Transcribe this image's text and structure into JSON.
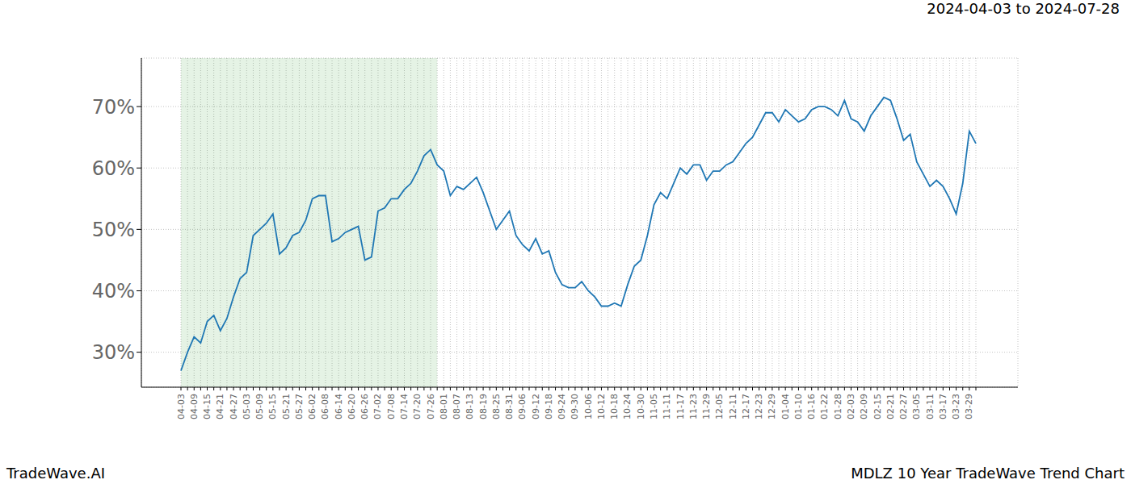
{
  "chart_data": {
    "type": "line",
    "title": "2024-04-03 to 2024-07-28",
    "footer_left": "TradeWave.AI",
    "footer_right": "MDLZ 10 Year TradeWave Trend Chart",
    "categories": [
      "04-03",
      null,
      "04-09",
      null,
      "04-15",
      null,
      "04-21",
      null,
      "04-27",
      null,
      "05-03",
      null,
      "05-09",
      null,
      "05-15",
      null,
      "05-21",
      null,
      "05-27",
      null,
      "06-02",
      null,
      "06-08",
      null,
      "06-14",
      null,
      "06-20",
      null,
      "06-26",
      null,
      "07-02",
      null,
      "07-08",
      null,
      "07-14",
      null,
      "07-20",
      null,
      "07-26",
      null,
      "08-01",
      null,
      "08-07",
      null,
      "08-13",
      null,
      "08-19",
      null,
      "08-25",
      null,
      "08-31",
      null,
      "09-06",
      null,
      "09-12",
      null,
      "09-18",
      null,
      "09-24",
      null,
      "09-30",
      null,
      "10-06",
      null,
      "10-12",
      null,
      "10-18",
      null,
      "10-24",
      null,
      "10-30",
      null,
      "11-05",
      null,
      "11-11",
      null,
      "11-17",
      null,
      "11-23",
      null,
      "11-29",
      null,
      "12-05",
      null,
      "12-11",
      null,
      "12-17",
      null,
      "12-23",
      null,
      "12-29",
      null,
      "01-04",
      null,
      "01-10",
      null,
      "01-16",
      null,
      "01-22",
      null,
      "01-28",
      null,
      "02-03",
      null,
      "02-09",
      null,
      "02-15",
      null,
      "02-21",
      null,
      "02-27",
      null,
      "03-05",
      null,
      "03-11",
      null,
      "03-17",
      null,
      "03-23",
      null,
      "03-29",
      null
    ],
    "values": [
      27,
      30,
      32.5,
      31.5,
      35,
      36,
      33.5,
      35.5,
      39,
      42,
      43,
      49,
      50,
      51,
      52.5,
      46,
      47,
      49,
      49.5,
      51.5,
      55,
      55.5,
      55.5,
      48,
      48.5,
      49.5,
      50,
      50.5,
      45,
      45.5,
      53,
      53.5,
      55,
      55,
      56.5,
      57.5,
      59.5,
      62,
      63,
      60.5,
      59.5,
      55.5,
      57,
      56.5,
      57.5,
      58.5,
      56,
      53,
      50,
      51.5,
      53,
      49,
      47.5,
      46.5,
      48.5,
      46,
      46.5,
      43,
      41,
      40.5,
      40.5,
      41.5,
      40,
      39,
      37.5,
      37.5,
      38,
      37.5,
      41,
      44,
      45,
      49,
      54,
      56,
      55,
      57.5,
      60,
      59,
      60.5,
      60.5,
      58,
      59.5,
      59.5,
      60.5,
      61,
      62.5,
      64,
      65,
      67,
      69,
      69,
      67.5,
      69.5,
      68.5,
      67.5,
      68,
      69.5,
      70,
      70,
      69.5,
      68.5,
      71,
      68,
      67.5,
      66,
      68.5,
      70,
      71.5,
      71,
      68,
      64.5,
      65.5,
      61,
      59,
      57,
      58,
      57,
      55,
      52.5,
      57.5,
      66,
      64
    ],
    "color": "#1f77b4",
    "ylim": [
      24.3,
      77.9
    ],
    "yticks": [
      {
        "value": 30,
        "label": "30%"
      },
      {
        "value": 40,
        "label": "40%"
      },
      {
        "value": 50,
        "label": "50%"
      },
      {
        "value": 60,
        "label": "60%"
      },
      {
        "value": 70,
        "label": "70%"
      }
    ],
    "grid": true,
    "shaded_range": [
      0,
      39
    ]
  }
}
